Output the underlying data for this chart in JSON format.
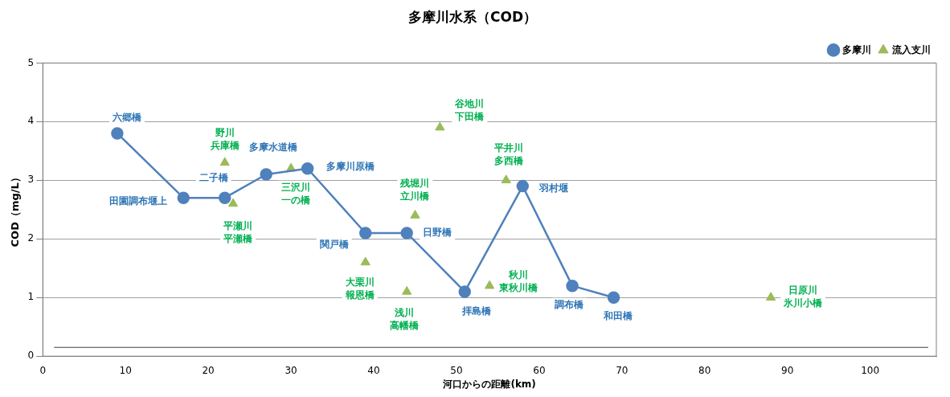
{
  "chart_data": {
    "type": "line",
    "title": "多摩川水系（COD）",
    "xlabel": "河口からの距離(km)",
    "ylabel": "COD（mg/L）",
    "xlim": [
      0,
      108
    ],
    "xticks": [
      0,
      10,
      20,
      30,
      40,
      50,
      60,
      70,
      80,
      90,
      100
    ],
    "ylim": [
      0,
      5
    ],
    "yticks": [
      0,
      1,
      2,
      3,
      4,
      5
    ],
    "grid": "y",
    "legend": "top right",
    "series": [
      {
        "name": "多摩川",
        "type": "line",
        "color": "#4f81bd",
        "marker": "circle",
        "line_style": "solid",
        "x": [
          9,
          17,
          22,
          27,
          32,
          39,
          44,
          51,
          58,
          64,
          69
        ],
        "values": [
          3.8,
          2.7,
          2.7,
          3.1,
          3.2,
          2.1,
          2.1,
          1.1,
          2.9,
          1.2,
          1.0
        ]
      },
      {
        "name": "流入支川",
        "type": "scatter",
        "color": "#9bbb59",
        "marker": "triangle",
        "x": [
          22,
          23,
          30,
          39,
          44,
          45,
          48,
          54,
          56,
          88
        ],
        "values": [
          3.3,
          2.6,
          3.2,
          1.6,
          1.1,
          2.4,
          3.9,
          1.2,
          3.0,
          1.0
        ]
      }
    ],
    "ref_lines": [
      {
        "axis": "y",
        "value": 0.15,
        "color": "#404040"
      }
    ],
    "annotations": [
      {
        "text": "六郷橋",
        "x": 9,
        "y": 3.8
      },
      {
        "text": "田園調布堰上",
        "x": 17,
        "y": 2.7
      },
      {
        "text": "二子橋",
        "x": 22,
        "y": 2.7
      },
      {
        "text": "多摩水道橋",
        "x": 27,
        "y": 3.1
      },
      {
        "text": "多摩川原橋",
        "x": 32,
        "y": 3.2
      },
      {
        "text": "関戸橋",
        "x": 39,
        "y": 2.1
      },
      {
        "text": "日野橋",
        "x": 44,
        "y": 2.1
      },
      {
        "text": "拝島橋",
        "x": 51,
        "y": 1.1
      },
      {
        "text": "羽村堰",
        "x": 58,
        "y": 2.9
      },
      {
        "text": "調布橋",
        "x": 64,
        "y": 1.2
      },
      {
        "text": "和田橋",
        "x": 69,
        "y": 1.0
      },
      {
        "text": "野川",
        "x": 22,
        "y": 3.3
      },
      {
        "text": "兵庫橋",
        "x": 22,
        "y": 3.3
      },
      {
        "text": "平瀬川",
        "x": 23,
        "y": 2.6
      },
      {
        "text": "平瀬橋",
        "x": 23,
        "y": 2.6
      },
      {
        "text": "三沢川",
        "x": 30,
        "y": 3.2
      },
      {
        "text": "一の橋",
        "x": 30,
        "y": 3.2
      },
      {
        "text": "大栗川",
        "x": 39,
        "y": 1.6
      },
      {
        "text": "報恩橋",
        "x": 39,
        "y": 1.6
      },
      {
        "text": "浅川",
        "x": 44,
        "y": 1.1
      },
      {
        "text": "高幡橋",
        "x": 44,
        "y": 1.1
      },
      {
        "text": "残堀川",
        "x": 45,
        "y": 2.4
      },
      {
        "text": "立川橋",
        "x": 45,
        "y": 2.4
      },
      {
        "text": "谷地川",
        "x": 48,
        "y": 3.9
      },
      {
        "text": "下田橋",
        "x": 48,
        "y": 3.9
      },
      {
        "text": "秋川",
        "x": 54,
        "y": 1.2
      },
      {
        "text": "東秋川橋",
        "x": 54,
        "y": 1.2
      },
      {
        "text": "平井川",
        "x": 56,
        "y": 3.0
      },
      {
        "text": "多西橋",
        "x": 56,
        "y": 3.0
      },
      {
        "text": "日原川",
        "x": 88,
        "y": 1.0
      },
      {
        "text": "氷川小橋",
        "x": 88,
        "y": 1.0
      }
    ]
  }
}
